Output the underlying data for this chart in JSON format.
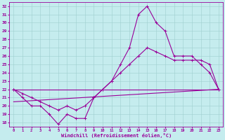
{
  "xlabel": "Windchill (Refroidissement éolien,°C)",
  "bg_color": "#c5ecee",
  "line_color": "#990099",
  "xlim": [
    -0.5,
    23.5
  ],
  "ylim": [
    17.5,
    32.5
  ],
  "xticks": [
    0,
    1,
    2,
    3,
    4,
    5,
    6,
    7,
    8,
    9,
    10,
    11,
    12,
    13,
    14,
    15,
    16,
    17,
    18,
    19,
    20,
    21,
    22,
    23
  ],
  "yticks": [
    18,
    19,
    20,
    21,
    22,
    23,
    24,
    25,
    26,
    27,
    28,
    29,
    30,
    31,
    32
  ],
  "line1_x": [
    0,
    1,
    2,
    3,
    4,
    5,
    6,
    7,
    8,
    9,
    10,
    11,
    12,
    13,
    14,
    15,
    16,
    17,
    18,
    19,
    20,
    21,
    22,
    23
  ],
  "line1_y": [
    22,
    21,
    20,
    20,
    19,
    17.8,
    19,
    18.5,
    18.5,
    21,
    22,
    23,
    25,
    27,
    31,
    32,
    30,
    29,
    26,
    26,
    26,
    25,
    24,
    22
  ],
  "line2_x": [
    0,
    1,
    2,
    3,
    4,
    5,
    6,
    7,
    8,
    9,
    10,
    11,
    12,
    13,
    14,
    15,
    16,
    17,
    18,
    19,
    20,
    21,
    22,
    23
  ],
  "line2_y": [
    22,
    21.5,
    21,
    20.5,
    20,
    19.5,
    20,
    19.5,
    20,
    21,
    22,
    23,
    24,
    25,
    26,
    27,
    26.5,
    26,
    25.5,
    25.5,
    25.5,
    25.5,
    25,
    22
  ],
  "line3_x": [
    0,
    23
  ],
  "line3_y": [
    22,
    22
  ],
  "line4_x": [
    0,
    23
  ],
  "line4_y": [
    20.5,
    22
  ],
  "marker": "+",
  "markersize": 3,
  "linewidth": 0.8
}
